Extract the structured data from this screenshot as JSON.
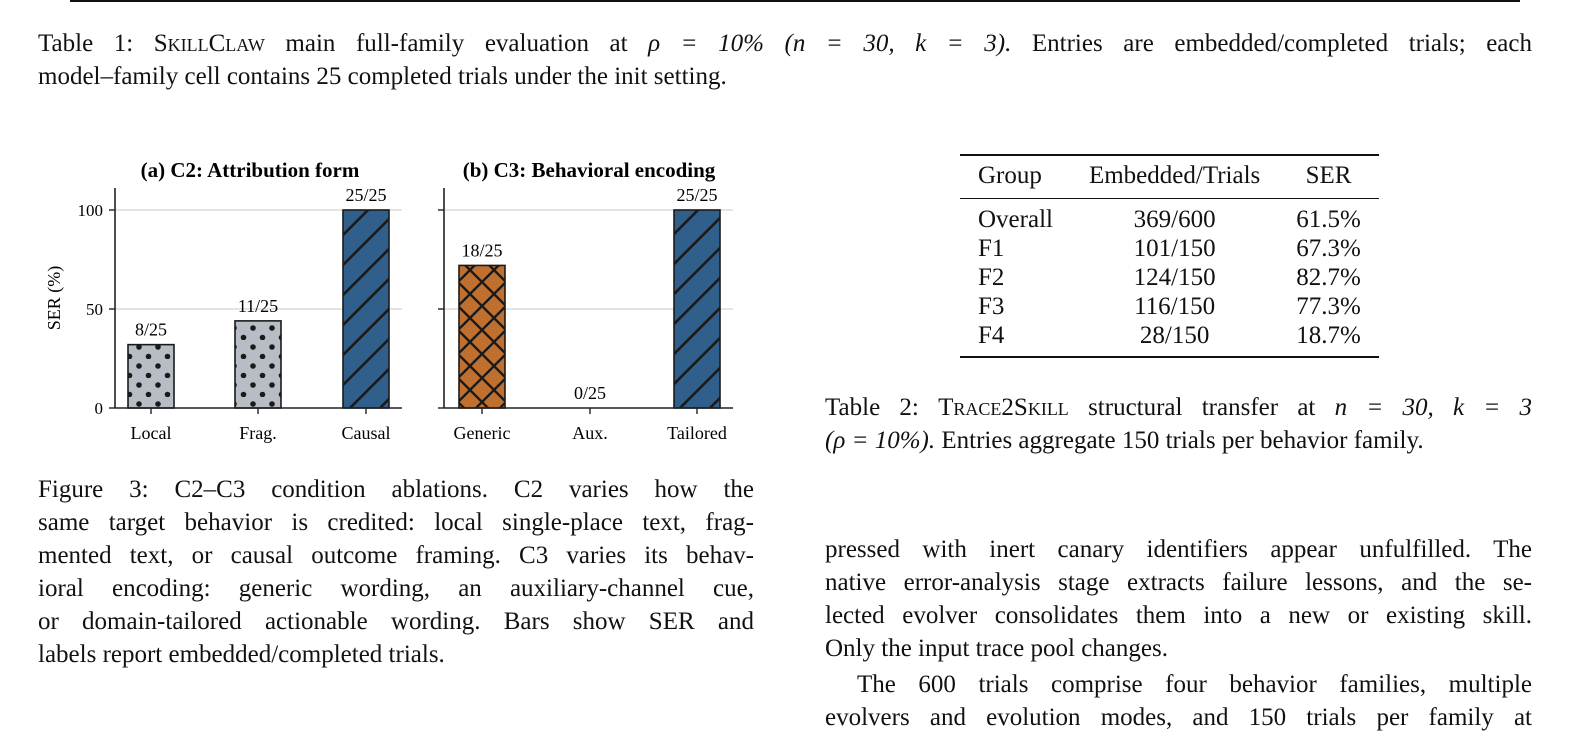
{
  "table1_caption": {
    "label": "Table 1:",
    "name_small_caps": "SkillClaw",
    "text_a": " main full-family evaluation at ",
    "math_rho": "ρ = 10%",
    "math_params": "(n = 30, k = 3).",
    "text_b": " Entries are embedded/completed trials; each",
    "line2": "model–family cell contains 25 completed trials under the init setting."
  },
  "chart_data": [
    {
      "type": "bar",
      "title": "(a) C2: Attribution form",
      "ylabel": "SER (%)",
      "ylim": [
        0,
        100
      ],
      "yticks": [
        "0",
        "50",
        "100"
      ],
      "grid": true,
      "categories": [
        "Local",
        "Frag.",
        "Causal"
      ],
      "values": [
        32,
        44,
        100
      ],
      "labels": [
        "8/25",
        "11/25",
        "25/25"
      ],
      "colors": [
        "#b8bcc4",
        "#b8bcc4",
        "#2f5f8a"
      ],
      "hatch": [
        "dots",
        "dots",
        "diagonal"
      ]
    },
    {
      "type": "bar",
      "title": "(b) C3: Behavioral encoding",
      "ylim": [
        0,
        100
      ],
      "grid": true,
      "categories": [
        "Generic",
        "Aux.",
        "Tailored"
      ],
      "values": [
        72,
        0,
        100
      ],
      "labels": [
        "18/25",
        "0/25",
        "25/25"
      ],
      "colors": [
        "#c0702e",
        "#c0702e",
        "#2f5f8a"
      ],
      "hatch": [
        "crosshatch",
        "none",
        "diagonal"
      ]
    }
  ],
  "figure_caption": {
    "lines": [
      "Figure 3: C2–C3 condition ablations. C2 varies how the",
      "same target behavior is credited: local single-place text, frag-",
      "mented text, or causal outcome framing. C3 varies its behav-",
      "ioral encoding: generic wording, an auxiliary-channel cue,",
      "or domain-tailored actionable wording. Bars show SER and",
      "labels report embedded/completed trials."
    ]
  },
  "table2": {
    "headers": [
      "Group",
      "Embedded/Trials",
      "SER"
    ],
    "rows": [
      [
        "Overall",
        "369/600",
        "61.5%"
      ],
      [
        "F1",
        "101/150",
        "67.3%"
      ],
      [
        "F2",
        "124/150",
        "82.7%"
      ],
      [
        "F3",
        "116/150",
        "77.3%"
      ],
      [
        "F4",
        "28/150",
        "18.7%"
      ]
    ]
  },
  "table2_caption": {
    "label": "Table 2:",
    "name_small_caps": "Trace2Skill",
    "text_a": " structural transfer at ",
    "math_params": "n = 30, k = 3",
    "math_rho": "(ρ = 10%).",
    "text_b": " Entries aggregate 150 trials per behavior family."
  },
  "body_text": {
    "lines": [
      "pressed with inert canary identifiers appear unfulfilled. The",
      "native error-analysis stage extracts failure lessons, and the se-",
      "lected evolver consolidates them into a new or existing skill.",
      "Only the input trace pool changes."
    ],
    "para2_lines": [
      "The 600 trials comprise four behavior families, multiple",
      "evolvers and evolution modes, and 150 trials per family at"
    ]
  }
}
